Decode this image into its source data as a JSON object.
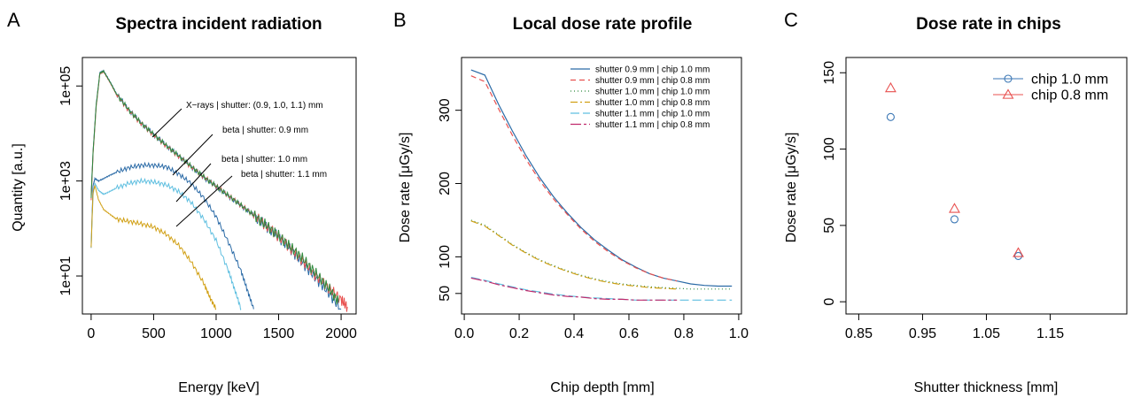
{
  "colors": {
    "blue": "#2a6aa6",
    "red": "#e8504f",
    "green": "#2e8b3e",
    "gold": "#d1a015",
    "cyan": "#5fbfe0",
    "magenta": "#c02a6c",
    "circle": "#3a76b4",
    "triangle": "#e8504f"
  },
  "panels": {
    "A": {
      "label": "A",
      "title": "Spectra incident radiation",
      "xlabel": "Energy [keV]",
      "ylabel": "Quantity [a.u.]"
    },
    "B": {
      "label": "B",
      "title": "Local dose rate profile",
      "xlabel": "Chip depth [mm]",
      "ylabel": "Dose rate [μGy/s]"
    },
    "C": {
      "label": "C",
      "title": "Dose rate in chips",
      "xlabel": "Shutter thickness [mm]",
      "ylabel": "Dose rate [μGy/s]"
    }
  },
  "chart_data": [
    {
      "type": "line",
      "id": "A",
      "title": "Spectra incident radiation",
      "xlabel": "Energy [keV]",
      "ylabel": "Quantity [a.u.]",
      "xlim": [
        -70,
        2120
      ],
      "ylim_log10": [
        0.2,
        5.6
      ],
      "yscale": "log",
      "xticks": [
        0,
        500,
        1000,
        1500,
        2000
      ],
      "xtick_labels": [
        "0",
        "500",
        "1000",
        "1500",
        "2000"
      ],
      "yticks_log10": [
        1,
        3,
        5
      ],
      "ytick_labels": [
        "1e+01",
        "1e+03",
        "1e+05"
      ],
      "annotations": [
        "X−rays | shutter: (0.9, 1.0, 1.1) mm",
        "beta | shutter: 0.9 mm",
        "beta | shutter: 1.0 mm",
        "beta | shutter: 1.1 mm"
      ],
      "series": [
        {
          "color_key": "blue",
          "x": [
            0,
            15,
            40,
            70,
            100,
            150,
            200,
            300,
            400,
            500,
            600,
            700,
            800,
            900,
            1000,
            1100,
            1200,
            1300,
            1400,
            1500,
            1600,
            1700,
            1800,
            1900,
            2000
          ],
          "y_log10": [
            2.7,
            3.6,
            4.6,
            5.28,
            5.32,
            5.1,
            4.85,
            4.5,
            4.22,
            3.98,
            3.75,
            3.53,
            3.3,
            3.08,
            2.88,
            2.68,
            2.48,
            2.28,
            2.05,
            1.82,
            1.55,
            1.25,
            0.95,
            0.65,
            0.3
          ]
        },
        {
          "color_key": "red",
          "x": [
            0,
            15,
            40,
            70,
            100,
            150,
            200,
            300,
            400,
            500,
            600,
            700,
            800,
            900,
            1000,
            1100,
            1200,
            1300,
            1400,
            1500,
            1600,
            1700,
            1800,
            1900,
            2000,
            2050
          ],
          "y_log10": [
            2.6,
            3.55,
            4.55,
            5.26,
            5.3,
            5.08,
            4.83,
            4.49,
            4.21,
            3.97,
            3.74,
            3.52,
            3.3,
            3.09,
            2.89,
            2.69,
            2.49,
            2.28,
            2.06,
            1.83,
            1.57,
            1.3,
            1.0,
            0.75,
            0.5,
            0.35
          ]
        },
        {
          "color_key": "green",
          "x": [
            0,
            15,
            40,
            70,
            100,
            150,
            200,
            300,
            400,
            500,
            600,
            700,
            800,
            900,
            1000,
            1100,
            1200,
            1300,
            1400,
            1500,
            1600,
            1700,
            1800,
            1900,
            1980
          ],
          "y_log10": [
            2.65,
            3.58,
            4.58,
            5.27,
            5.31,
            5.09,
            4.84,
            4.5,
            4.22,
            3.98,
            3.75,
            3.53,
            3.31,
            3.09,
            2.89,
            2.69,
            2.49,
            2.28,
            2.07,
            1.85,
            1.6,
            1.35,
            1.05,
            0.75,
            0.45
          ]
        },
        {
          "color_key": "blue",
          "x": [
            0,
            15,
            30,
            60,
            100,
            150,
            200,
            300,
            400,
            500,
            600,
            700,
            800,
            900,
            1000,
            1100,
            1200,
            1250,
            1300
          ],
          "y_log10": [
            1.6,
            2.9,
            3.05,
            3.0,
            3.05,
            3.12,
            3.18,
            3.28,
            3.33,
            3.33,
            3.3,
            3.15,
            2.95,
            2.65,
            2.25,
            1.7,
            1.1,
            0.7,
            0.3
          ]
        },
        {
          "color_key": "cyan",
          "x": [
            0,
            15,
            30,
            60,
            100,
            150,
            200,
            300,
            400,
            500,
            600,
            700,
            800,
            900,
            1000,
            1100,
            1150,
            1200
          ],
          "y_log10": [
            1.6,
            2.7,
            2.95,
            2.8,
            2.72,
            2.78,
            2.85,
            2.95,
            3.0,
            2.98,
            2.92,
            2.78,
            2.55,
            2.2,
            1.75,
            1.1,
            0.7,
            0.3
          ]
        },
        {
          "color_key": "gold",
          "x": [
            0,
            15,
            30,
            60,
            100,
            150,
            200,
            300,
            400,
            500,
            600,
            700,
            800,
            900,
            950,
            1000
          ],
          "y_log10": [
            1.6,
            2.75,
            2.9,
            2.6,
            2.4,
            2.3,
            2.2,
            2.15,
            2.1,
            2.03,
            1.88,
            1.65,
            1.3,
            0.85,
            0.55,
            0.3
          ]
        }
      ]
    },
    {
      "type": "line",
      "id": "B",
      "title": "Local dose rate profile",
      "xlabel": "Chip depth [mm]",
      "ylabel": "Dose rate [μGy/s]",
      "xlim": [
        -0.01,
        1.01
      ],
      "ylim": [
        22,
        372
      ],
      "xticks": [
        0.0,
        0.2,
        0.4,
        0.6,
        0.8,
        1.0
      ],
      "xtick_labels": [
        "0.0",
        "0.2",
        "0.4",
        "0.6",
        "0.8",
        "1.0"
      ],
      "yticks": [
        50,
        100,
        200,
        300
      ],
      "ytick_labels": [
        "50",
        "100",
        "200",
        "300"
      ],
      "legend_position": "top-right",
      "series": [
        {
          "name": "shutter 0.9 mm | chip 1.0 mm",
          "color_key": "blue",
          "dash": "",
          "x": [
            0.025,
            0.075,
            0.125,
            0.175,
            0.225,
            0.275,
            0.325,
            0.375,
            0.425,
            0.475,
            0.525,
            0.575,
            0.625,
            0.675,
            0.725,
            0.775,
            0.825,
            0.875,
            0.925,
            0.975
          ],
          "y": [
            355,
            348,
            308,
            272,
            238,
            208,
            182,
            160,
            140,
            123,
            109,
            96,
            86,
            77,
            71,
            67,
            63,
            61,
            60,
            60
          ]
        },
        {
          "name": "shutter 0.9 mm | chip 0.8 mm",
          "color_key": "red",
          "dash": "6,4",
          "x": [
            0.025,
            0.075,
            0.125,
            0.175,
            0.225,
            0.275,
            0.325,
            0.375,
            0.425,
            0.475,
            0.525,
            0.575,
            0.625,
            0.675,
            0.725,
            0.775
          ],
          "y": [
            347,
            339,
            302,
            266,
            233,
            204,
            179,
            158,
            138,
            121,
            107,
            95,
            85,
            77,
            71,
            67
          ]
        },
        {
          "name": "shutter 1.0 mm | chip 1.0 mm",
          "color_key": "green",
          "dash": "1,3",
          "x": [
            0.025,
            0.075,
            0.125,
            0.175,
            0.225,
            0.275,
            0.325,
            0.375,
            0.425,
            0.475,
            0.525,
            0.575,
            0.625,
            0.675,
            0.725,
            0.775,
            0.825,
            0.875,
            0.925,
            0.975
          ],
          "y": [
            150,
            143,
            130,
            117,
            106,
            96,
            88,
            81,
            75,
            70,
            66,
            63,
            61,
            59,
            58,
            57,
            56,
            56,
            56,
            56
          ]
        },
        {
          "name": "shutter 1.0 mm | chip 0.8 mm",
          "color_key": "gold",
          "dash": "8,3,2,3",
          "x": [
            0.025,
            0.075,
            0.125,
            0.175,
            0.225,
            0.275,
            0.325,
            0.375,
            0.425,
            0.475,
            0.525,
            0.575,
            0.625,
            0.675,
            0.725,
            0.775
          ],
          "y": [
            149,
            142,
            129,
            116,
            105,
            95,
            87,
            80,
            74,
            69,
            65,
            62,
            60,
            58,
            57,
            56
          ]
        },
        {
          "name": "shutter 1.1 mm | chip 1.0 mm",
          "color_key": "cyan",
          "dash": "10,4",
          "x": [
            0.025,
            0.075,
            0.125,
            0.175,
            0.225,
            0.275,
            0.325,
            0.375,
            0.425,
            0.475,
            0.525,
            0.575,
            0.625,
            0.675,
            0.725,
            0.775,
            0.825,
            0.875,
            0.925,
            0.975
          ],
          "y": [
            72,
            68,
            63,
            59,
            55,
            52,
            49,
            47,
            45,
            44,
            43,
            42,
            41,
            41,
            41,
            41,
            41,
            41,
            41,
            41
          ]
        },
        {
          "name": "shutter 1.1 mm | chip 0.8 mm",
          "color_key": "magenta",
          "dash": "12,3,3,3",
          "x": [
            0.025,
            0.075,
            0.125,
            0.175,
            0.225,
            0.275,
            0.325,
            0.375,
            0.425,
            0.475,
            0.525,
            0.575,
            0.625,
            0.675,
            0.725,
            0.775
          ],
          "y": [
            71,
            67,
            62,
            58,
            54,
            51,
            48,
            46,
            45,
            43,
            42,
            42,
            41,
            41,
            41,
            41
          ]
        }
      ]
    },
    {
      "type": "scatter",
      "id": "C",
      "title": "Dose rate in chips",
      "xlabel": "Shutter thickness [mm]",
      "ylabel": "Dose rate [μGy/s]",
      "xlim": [
        0.83,
        1.27
      ],
      "ylim": [
        -8,
        160
      ],
      "xticks": [
        0.85,
        0.95,
        1.05,
        1.15
      ],
      "xtick_labels": [
        "0.85",
        "0.95",
        "1.05",
        "1.15"
      ],
      "yticks": [
        0,
        50,
        100,
        150
      ],
      "ytick_labels": [
        "0",
        "50",
        "100",
        "150"
      ],
      "legend_position": "top-right",
      "series": [
        {
          "name": "chip 1.0 mm",
          "marker": "circle",
          "color_key": "circle",
          "x": [
            0.9,
            1.0,
            1.1
          ],
          "y": [
            121,
            54,
            30
          ]
        },
        {
          "name": "chip 0.8 mm",
          "marker": "triangle",
          "color_key": "triangle",
          "x": [
            0.9,
            1.0,
            1.1
          ],
          "y": [
            140,
            61,
            32
          ]
        }
      ]
    }
  ]
}
